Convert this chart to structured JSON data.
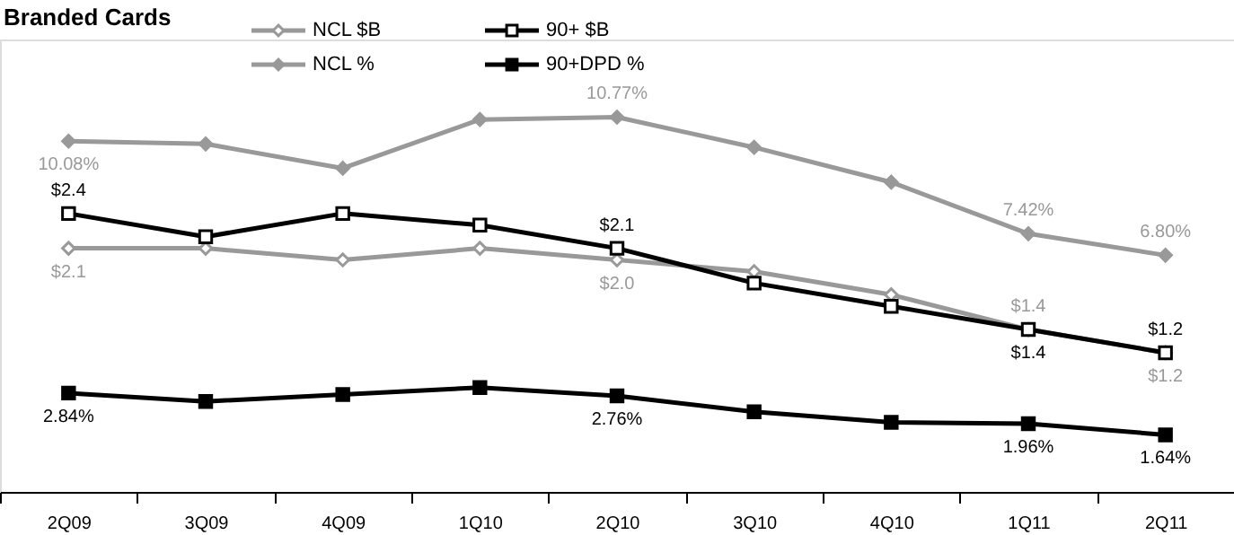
{
  "chart_data": {
    "type": "line",
    "title": "Branded Cards",
    "categories": [
      "2Q09",
      "3Q09",
      "4Q09",
      "1Q10",
      "2Q10",
      "3Q10",
      "4Q10",
      "1Q11",
      "2Q11"
    ],
    "ylim": [
      0,
      13
    ],
    "y2lim": [
      0,
      3.9
    ],
    "grid": false,
    "legend": "top left",
    "line_style": "solid",
    "tick_labels": "x",
    "series": [
      {
        "name": "NCL $B",
        "color": "#999999",
        "axis": "y2",
        "marker": "diamond",
        "values": [
          2.1,
          2.1,
          2.0,
          2.1,
          2.0,
          1.9,
          1.7,
          1.4,
          1.2
        ],
        "value_labels": [
          "$2.1",
          null,
          null,
          null,
          "$2.0",
          null,
          null,
          "$1.4",
          "$1.2"
        ]
      },
      {
        "name": "90+ $B",
        "color": "#000000",
        "axis": "y2",
        "marker": "square",
        "values": [
          2.4,
          2.2,
          2.4,
          2.3,
          2.1,
          1.8,
          1.6,
          1.4,
          1.2
        ],
        "value_labels": [
          "$2.4",
          null,
          null,
          null,
          "$2.1",
          null,
          null,
          "$1.4",
          "$1.2"
        ]
      },
      {
        "name": "NCL %",
        "color": "#999999",
        "marker": "diamond",
        "values": [
          10.08,
          10.0,
          9.3,
          10.7,
          10.77,
          9.9,
          8.9,
          7.42,
          6.8
        ],
        "value_labels": [
          "10.08%",
          null,
          null,
          null,
          "10.77%",
          null,
          null,
          "7.42%",
          "6.80%"
        ]
      },
      {
        "name": "90+DPD %",
        "color": "#000000",
        "marker": "square",
        "values": [
          2.84,
          2.6,
          2.8,
          3.0,
          2.76,
          2.3,
          2.0,
          1.96,
          1.64
        ],
        "value_labels": [
          "2.84%",
          null,
          null,
          null,
          "2.76%",
          null,
          null,
          "1.96%",
          "1.64%"
        ]
      }
    ]
  }
}
